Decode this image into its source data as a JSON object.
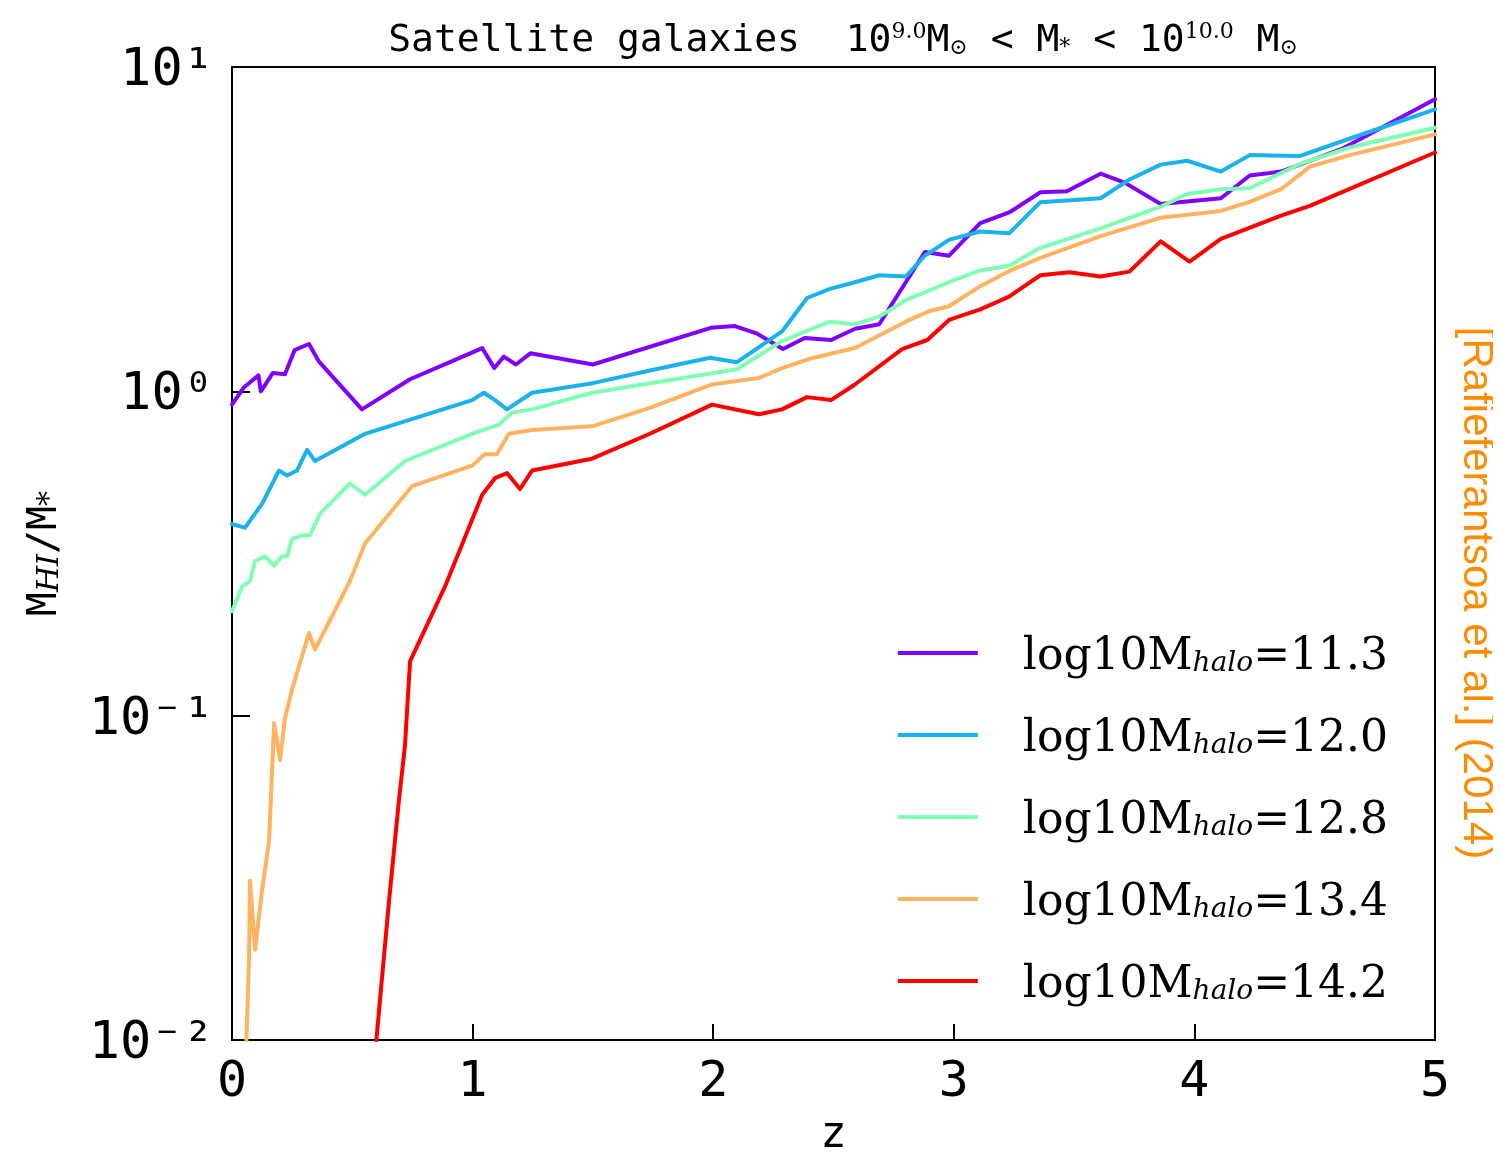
{
  "chart_data": {
    "type": "line",
    "title": "Satellite galaxies  10$^{9.0}$M$_{⊙}$ < M$_{*}$ < 10$^{10.0}$ M$_{⊙}$",
    "xlabel": "z",
    "ylabel": "M$_{HI}$/M$_{*}$",
    "annotations": [
      "[Rafieferantsoa et al.] (2014)"
    ],
    "xlim": [
      0,
      5
    ],
    "xticks": [
      0,
      1,
      2,
      3,
      4,
      5
    ],
    "ylim": [
      0.01,
      10
    ],
    "yticks": [
      {
        "value": 0.01,
        "label": "10⁻²"
      },
      {
        "value": 0.1,
        "label": "10⁻¹"
      },
      {
        "value": 1,
        "label": "10⁰"
      },
      {
        "value": 10,
        "label": "10¹"
      }
    ],
    "log": "y",
    "grid": false,
    "legend": "bottom right",
    "marker": "none",
    "line_style": "solid",
    "series": [
      {
        "name": "log10M$_{halo}$=11.3",
        "color": "#8000ff",
        "x": [
          0,
          0.05,
          0.11,
          0.12,
          0.17,
          0.22,
          0.26,
          0.32,
          0.36,
          0.54,
          0.74,
          0.99,
          1.04,
          1.09,
          1.13,
          1.18,
          1.24,
          1.5,
          1.99,
          2.09,
          2.18,
          2.29,
          2.38,
          2.49,
          2.59,
          2.69,
          2.88,
          2.98,
          3.11,
          3.23,
          3.36,
          3.47,
          3.61,
          3.71,
          3.86,
          4.11,
          4.23,
          4.36,
          4.61,
          5
        ],
        "values": [
          0.91,
          1.03,
          1.12,
          1.0,
          1.14,
          1.13,
          1.34,
          1.4,
          1.24,
          0.88,
          1.09,
          1.31,
          1.36,
          1.18,
          1.28,
          1.21,
          1.31,
          1.21,
          1.57,
          1.59,
          1.51,
          1.35,
          1.46,
          1.44,
          1.56,
          1.61,
          2.69,
          2.62,
          3.3,
          3.56,
          4.11,
          4.14,
          4.69,
          4.4,
          3.78,
          3.94,
          4.63,
          4.76,
          5.58,
          7.95
        ]
      },
      {
        "name": "log10M$_{halo}$=12.0",
        "color": "#1ab2ec",
        "x": [
          0,
          0.054,
          0.125,
          0.195,
          0.229,
          0.27,
          0.312,
          0.345,
          0.553,
          0.998,
          1.047,
          1.093,
          1.143,
          1.247,
          1.5,
          1.737,
          1.987,
          2.099,
          2.286,
          2.39,
          2.485,
          2.589,
          2.69,
          2.8,
          2.88,
          2.98,
          3.11,
          3.23,
          3.36,
          3.61,
          3.73,
          3.86,
          3.97,
          4.11,
          4.23,
          4.44,
          4.65,
          5
        ],
        "values": [
          0.39,
          0.38,
          0.45,
          0.57,
          0.55,
          0.57,
          0.66,
          0.61,
          0.74,
          0.94,
          0.99,
          0.94,
          0.88,
          0.99,
          1.06,
          1.16,
          1.27,
          1.23,
          1.53,
          1.94,
          2.07,
          2.17,
          2.28,
          2.26,
          2.62,
          2.93,
          3.11,
          3.07,
          3.83,
          3.94,
          4.5,
          5.0,
          5.14,
          4.76,
          5.35,
          5.32,
          6.03,
          7.4
        ]
      },
      {
        "name": "log10M$_{halo}$=12.8",
        "color": "#80ffb4",
        "x": [
          0,
          0.042,
          0.075,
          0.096,
          0.137,
          0.175,
          0.208,
          0.229,
          0.249,
          0.291,
          0.324,
          0.366,
          0.49,
          0.553,
          0.719,
          0.998,
          1.11,
          1.164,
          1.247,
          1.496,
          1.737,
          2.099,
          2.286,
          2.485,
          2.589,
          2.69,
          2.8,
          2.98,
          3.11,
          3.23,
          3.36,
          3.61,
          3.86,
          3.97,
          4.11,
          4.23,
          4.44,
          4.65,
          5
        ],
        "values": [
          0.21,
          0.25,
          0.26,
          0.3,
          0.31,
          0.29,
          0.31,
          0.31,
          0.35,
          0.36,
          0.36,
          0.42,
          0.52,
          0.48,
          0.61,
          0.74,
          0.79,
          0.86,
          0.88,
          0.99,
          1.06,
          1.17,
          1.43,
          1.64,
          1.61,
          1.7,
          1.91,
          2.17,
          2.36,
          2.44,
          2.77,
          3.18,
          3.71,
          4.06,
          4.2,
          4.23,
          5.03,
          5.66,
          6.5
        ]
      },
      {
        "name": "log10M$_{halo}$=13.4",
        "color": "#ffb360",
        "x": [
          0.06,
          0.071,
          0.075,
          0.096,
          0.125,
          0.154,
          0.175,
          0.2,
          0.22,
          0.249,
          0.32,
          0.345,
          0.49,
          0.553,
          0.748,
          0.998,
          1.05,
          1.1,
          1.151,
          1.247,
          1.496,
          1.737,
          1.995,
          2.19,
          2.286,
          2.4,
          2.589,
          2.8,
          2.9,
          2.98,
          3.11,
          3.23,
          3.36,
          3.61,
          3.86,
          4.11,
          4.23,
          4.36,
          4.48,
          4.65,
          5
        ],
        "values": [
          0.01,
          0.018,
          0.031,
          0.019,
          0.029,
          0.041,
          0.095,
          0.073,
          0.098,
          0.12,
          0.18,
          0.16,
          0.26,
          0.34,
          0.51,
          0.59,
          0.64,
          0.64,
          0.74,
          0.76,
          0.78,
          0.89,
          1.05,
          1.1,
          1.18,
          1.26,
          1.36,
          1.64,
          1.77,
          1.83,
          2.11,
          2.35,
          2.58,
          3.01,
          3.43,
          3.6,
          3.84,
          4.2,
          4.93,
          5.36,
          6.2
        ]
      },
      {
        "name": "log10M$_{halo}$=14.2",
        "color": "#ff0000",
        "x": [
          0.6,
          0.653,
          0.694,
          0.719,
          0.74,
          0.885,
          1.04,
          1.093,
          1.143,
          1.197,
          1.247,
          1.496,
          1.737,
          1.995,
          2.19,
          2.286,
          2.39,
          2.49,
          2.589,
          2.785,
          2.89,
          2.98,
          3.11,
          3.23,
          3.36,
          3.48,
          3.61,
          3.73,
          3.86,
          3.98,
          4.11,
          4.36,
          4.48,
          5
        ],
        "values": [
          0.01,
          0.027,
          0.055,
          0.081,
          0.147,
          0.25,
          0.48,
          0.54,
          0.56,
          0.5,
          0.57,
          0.62,
          0.74,
          0.91,
          0.85,
          0.88,
          0.96,
          0.94,
          1.05,
          1.35,
          1.44,
          1.66,
          1.79,
          1.96,
          2.28,
          2.33,
          2.26,
          2.34,
          2.9,
          2.51,
          2.95,
          3.48,
          3.73,
          5.45
        ]
      }
    ]
  }
}
